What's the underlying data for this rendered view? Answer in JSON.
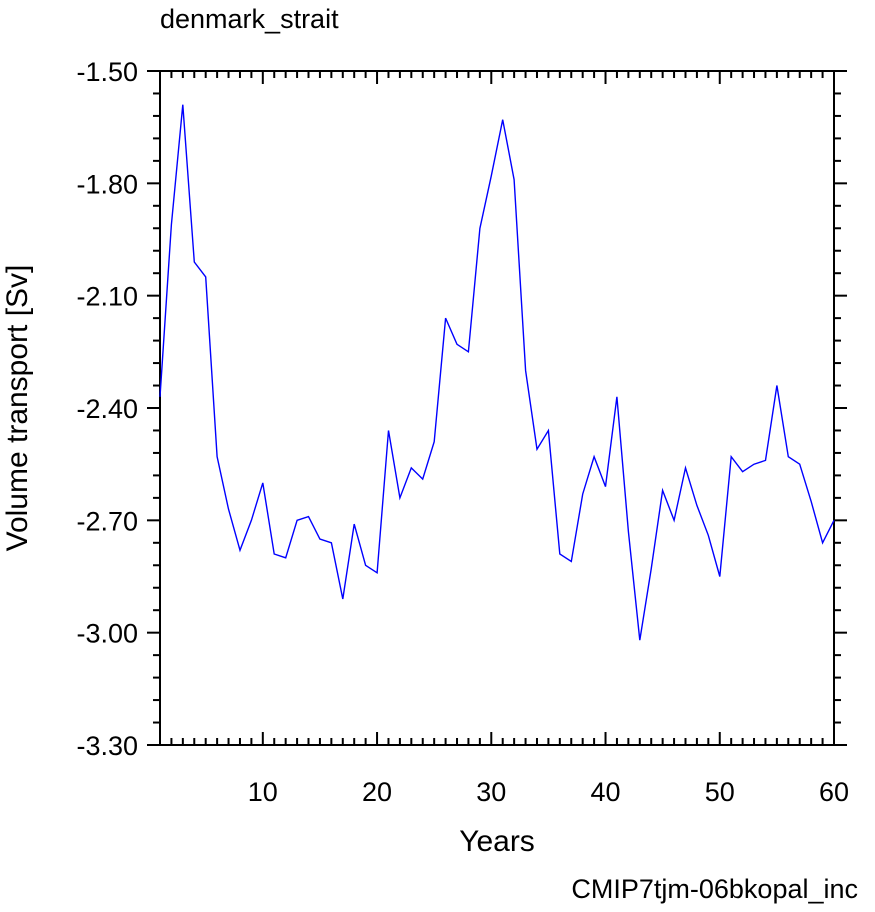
{
  "chart_data": {
    "type": "line",
    "title": "denmark_strait",
    "xlabel": "Years",
    "ylabel": "Volume transport [Sv]",
    "footer": "CMIP7tjm-06bkopal_inc",
    "xlim": [
      1,
      60
    ],
    "ylim": [
      -3.3,
      -1.5
    ],
    "x_ticks": [
      10,
      20,
      30,
      40,
      50,
      60
    ],
    "x_tick_labels": [
      "10",
      "20",
      "30",
      "40",
      "50",
      "60"
    ],
    "y_ticks": [
      -1.5,
      -1.8,
      -2.1,
      -2.4,
      -2.7,
      -3.0,
      -3.3
    ],
    "y_tick_labels": [
      "-1.50",
      "-1.80",
      "-2.10",
      "-2.40",
      "-2.70",
      "-3.00",
      "-3.30"
    ],
    "line_color": "#0000ff",
    "footer_color": "#0000ff",
    "grid": false,
    "series": [
      {
        "x": [
          1,
          2,
          3,
          4,
          5,
          6,
          7,
          8,
          9,
          10,
          11,
          12,
          13,
          14,
          15,
          16,
          17,
          18,
          19,
          20,
          21,
          22,
          23,
          24,
          25,
          26,
          27,
          28,
          29,
          30,
          31,
          32,
          33,
          34,
          35,
          36,
          37,
          38,
          39,
          40,
          41,
          42,
          43,
          44,
          45,
          46,
          47,
          48,
          49,
          50,
          51,
          52,
          53,
          54,
          55,
          56,
          57,
          58,
          59,
          60
        ],
        "values": [
          -2.37,
          -1.91,
          -1.59,
          -2.01,
          -2.05,
          -2.53,
          -2.67,
          -2.78,
          -2.7,
          -2.6,
          -2.79,
          -2.8,
          -2.7,
          -2.69,
          -2.75,
          -2.76,
          -2.91,
          -2.71,
          -2.82,
          -2.84,
          -2.46,
          -2.64,
          -2.56,
          -2.59,
          -2.49,
          -2.16,
          -2.23,
          -2.25,
          -1.92,
          -1.78,
          -1.63,
          -1.79,
          -2.3,
          -2.51,
          -2.46,
          -2.79,
          -2.81,
          -2.63,
          -2.53,
          -2.61,
          -2.37,
          -2.73,
          -3.02,
          -2.83,
          -2.62,
          -2.7,
          -2.56,
          -2.66,
          -2.74,
          -2.85,
          -2.53,
          -2.57,
          -2.55,
          -2.54,
          -2.34,
          -2.53,
          -2.55,
          -2.65,
          -2.76,
          -2.7
        ]
      }
    ]
  }
}
